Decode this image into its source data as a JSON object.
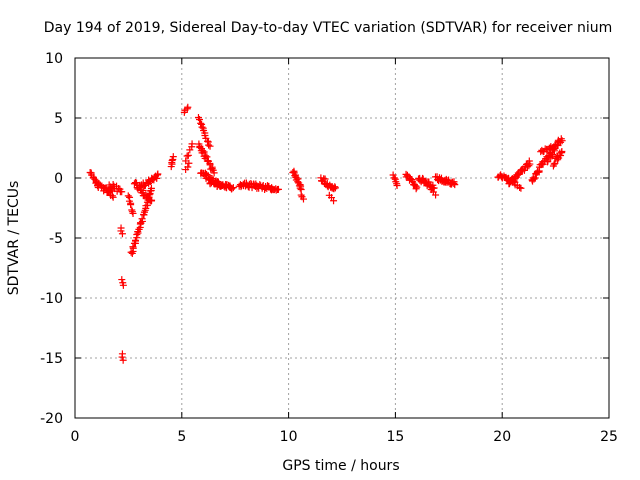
{
  "chart_data": {
    "type": "scatter",
    "title": "Day 194 of 2019, Sidereal Day-to-day VTEC variation (SDTVAR) for receiver nium",
    "xlabel": "GPS time / hours",
    "ylabel": "SDTVAR / TECUs",
    "xlim": [
      0,
      25
    ],
    "ylim": [
      -20,
      10
    ],
    "xticks": [
      0,
      5,
      10,
      15,
      20,
      25
    ],
    "yticks": [
      -20,
      -15,
      -10,
      -5,
      0,
      5,
      10
    ],
    "xtick_labels": [
      "0",
      "5",
      "10",
      "15",
      "20",
      "25"
    ],
    "ytick_labels": [
      "-20",
      "-15",
      "-10",
      "-5",
      "0",
      "5",
      "10"
    ],
    "grid": true,
    "marker": "+",
    "color": "#ff0000",
    "series": [
      {
        "name": "SDTVAR",
        "segments": [
          {
            "x0": 0.7,
            "x1": 1.1,
            "y0": 0.4,
            "y1": -0.6,
            "n": 10,
            "jitter": 0.4
          },
          {
            "x0": 1.0,
            "x1": 1.8,
            "y0": -0.5,
            "y1": -1.4,
            "n": 22,
            "jitter": 0.5
          },
          {
            "x0": 1.6,
            "x1": 2.2,
            "y0": -0.6,
            "y1": -1.1,
            "n": 12,
            "jitter": 0.4
          },
          {
            "x0": 2.15,
            "x1": 2.2,
            "y0": -4.2,
            "y1": -4.6,
            "n": 3,
            "jitter": 0.1
          },
          {
            "x0": 2.2,
            "x1": 2.25,
            "y0": -8.5,
            "y1": -8.9,
            "n": 3,
            "jitter": 0.1
          },
          {
            "x0": 2.2,
            "x1": 2.25,
            "y0": -14.7,
            "y1": -15.2,
            "n": 3,
            "jitter": 0.1
          },
          {
            "x0": 2.5,
            "x1": 2.7,
            "y0": -1.5,
            "y1": -3.0,
            "n": 8,
            "jitter": 0.3
          },
          {
            "x0": 2.65,
            "x1": 3.6,
            "y0": -6.3,
            "y1": -0.8,
            "n": 38,
            "jitter": 0.3
          },
          {
            "x0": 2.8,
            "x1": 3.6,
            "y0": -0.5,
            "y1": -2.0,
            "n": 20,
            "jitter": 0.5
          },
          {
            "x0": 3.0,
            "x1": 3.9,
            "y0": -0.8,
            "y1": 0.2,
            "n": 22,
            "jitter": 0.4
          },
          {
            "x0": 4.5,
            "x1": 4.6,
            "y0": 1.0,
            "y1": 1.8,
            "n": 6,
            "jitter": 0.2
          },
          {
            "x0": 5.1,
            "x1": 5.3,
            "y0": 5.5,
            "y1": 5.9,
            "n": 4,
            "jitter": 0.1
          },
          {
            "x0": 5.2,
            "x1": 5.5,
            "y0": 1.5,
            "y1": 2.8,
            "n": 6,
            "jitter": 0.3
          },
          {
            "x0": 5.2,
            "x1": 5.35,
            "y0": 0.7,
            "y1": 1.2,
            "n": 3,
            "jitter": 0.1
          },
          {
            "x0": 5.8,
            "x1": 6.3,
            "y0": 5.0,
            "y1": 2.6,
            "n": 14,
            "jitter": 0.2
          },
          {
            "x0": 5.8,
            "x1": 6.5,
            "y0": 2.8,
            "y1": 0.5,
            "n": 22,
            "jitter": 0.4
          },
          {
            "x0": 5.9,
            "x1": 6.8,
            "y0": 0.5,
            "y1": -0.7,
            "n": 30,
            "jitter": 0.4
          },
          {
            "x0": 6.3,
            "x1": 7.4,
            "y0": -0.3,
            "y1": -0.8,
            "n": 34,
            "jitter": 0.35
          },
          {
            "x0": 7.7,
            "x1": 9.5,
            "y0": -0.5,
            "y1": -0.9,
            "n": 46,
            "jitter": 0.4
          },
          {
            "x0": 10.2,
            "x1": 10.6,
            "y0": 0.6,
            "y1": -0.9,
            "n": 16,
            "jitter": 0.35
          },
          {
            "x0": 10.6,
            "x1": 10.7,
            "y0": -1.4,
            "y1": -1.8,
            "n": 3,
            "jitter": 0.1
          },
          {
            "x0": 11.5,
            "x1": 12.2,
            "y0": 0.0,
            "y1": -1.0,
            "n": 20,
            "jitter": 0.5
          },
          {
            "x0": 11.9,
            "x1": 12.1,
            "y0": -1.4,
            "y1": -1.9,
            "n": 3,
            "jitter": 0.1
          },
          {
            "x0": 14.9,
            "x1": 15.1,
            "y0": 0.2,
            "y1": -0.6,
            "n": 6,
            "jitter": 0.2
          },
          {
            "x0": 15.5,
            "x1": 16.0,
            "y0": 0.3,
            "y1": -0.8,
            "n": 16,
            "jitter": 0.35
          },
          {
            "x0": 16.1,
            "x1": 16.8,
            "y0": 0.0,
            "y1": -0.8,
            "n": 22,
            "jitter": 0.4
          },
          {
            "x0": 16.7,
            "x1": 16.9,
            "y0": -1.0,
            "y1": -1.4,
            "n": 3,
            "jitter": 0.1
          },
          {
            "x0": 16.9,
            "x1": 17.8,
            "y0": 0.0,
            "y1": -0.5,
            "n": 26,
            "jitter": 0.35
          },
          {
            "x0": 19.8,
            "x1": 20.6,
            "y0": 0.2,
            "y1": -0.3,
            "n": 22,
            "jitter": 0.3
          },
          {
            "x0": 20.3,
            "x1": 21.3,
            "y0": -0.4,
            "y1": 1.3,
            "n": 30,
            "jitter": 0.4
          },
          {
            "x0": 20.6,
            "x1": 20.9,
            "y0": -0.6,
            "y1": -0.9,
            "n": 4,
            "jitter": 0.1
          },
          {
            "x0": 21.4,
            "x1": 22.1,
            "y0": -0.2,
            "y1": 1.8,
            "n": 22,
            "jitter": 0.4
          },
          {
            "x0": 21.8,
            "x1": 22.4,
            "y0": 2.2,
            "y1": 2.6,
            "n": 12,
            "jitter": 0.2
          },
          {
            "x0": 22.1,
            "x1": 22.8,
            "y0": 1.5,
            "y1": 3.3,
            "n": 24,
            "jitter": 0.5
          },
          {
            "x0": 22.4,
            "x1": 22.8,
            "y0": 1.2,
            "y1": 2.2,
            "n": 12,
            "jitter": 0.4
          }
        ]
      }
    ]
  }
}
